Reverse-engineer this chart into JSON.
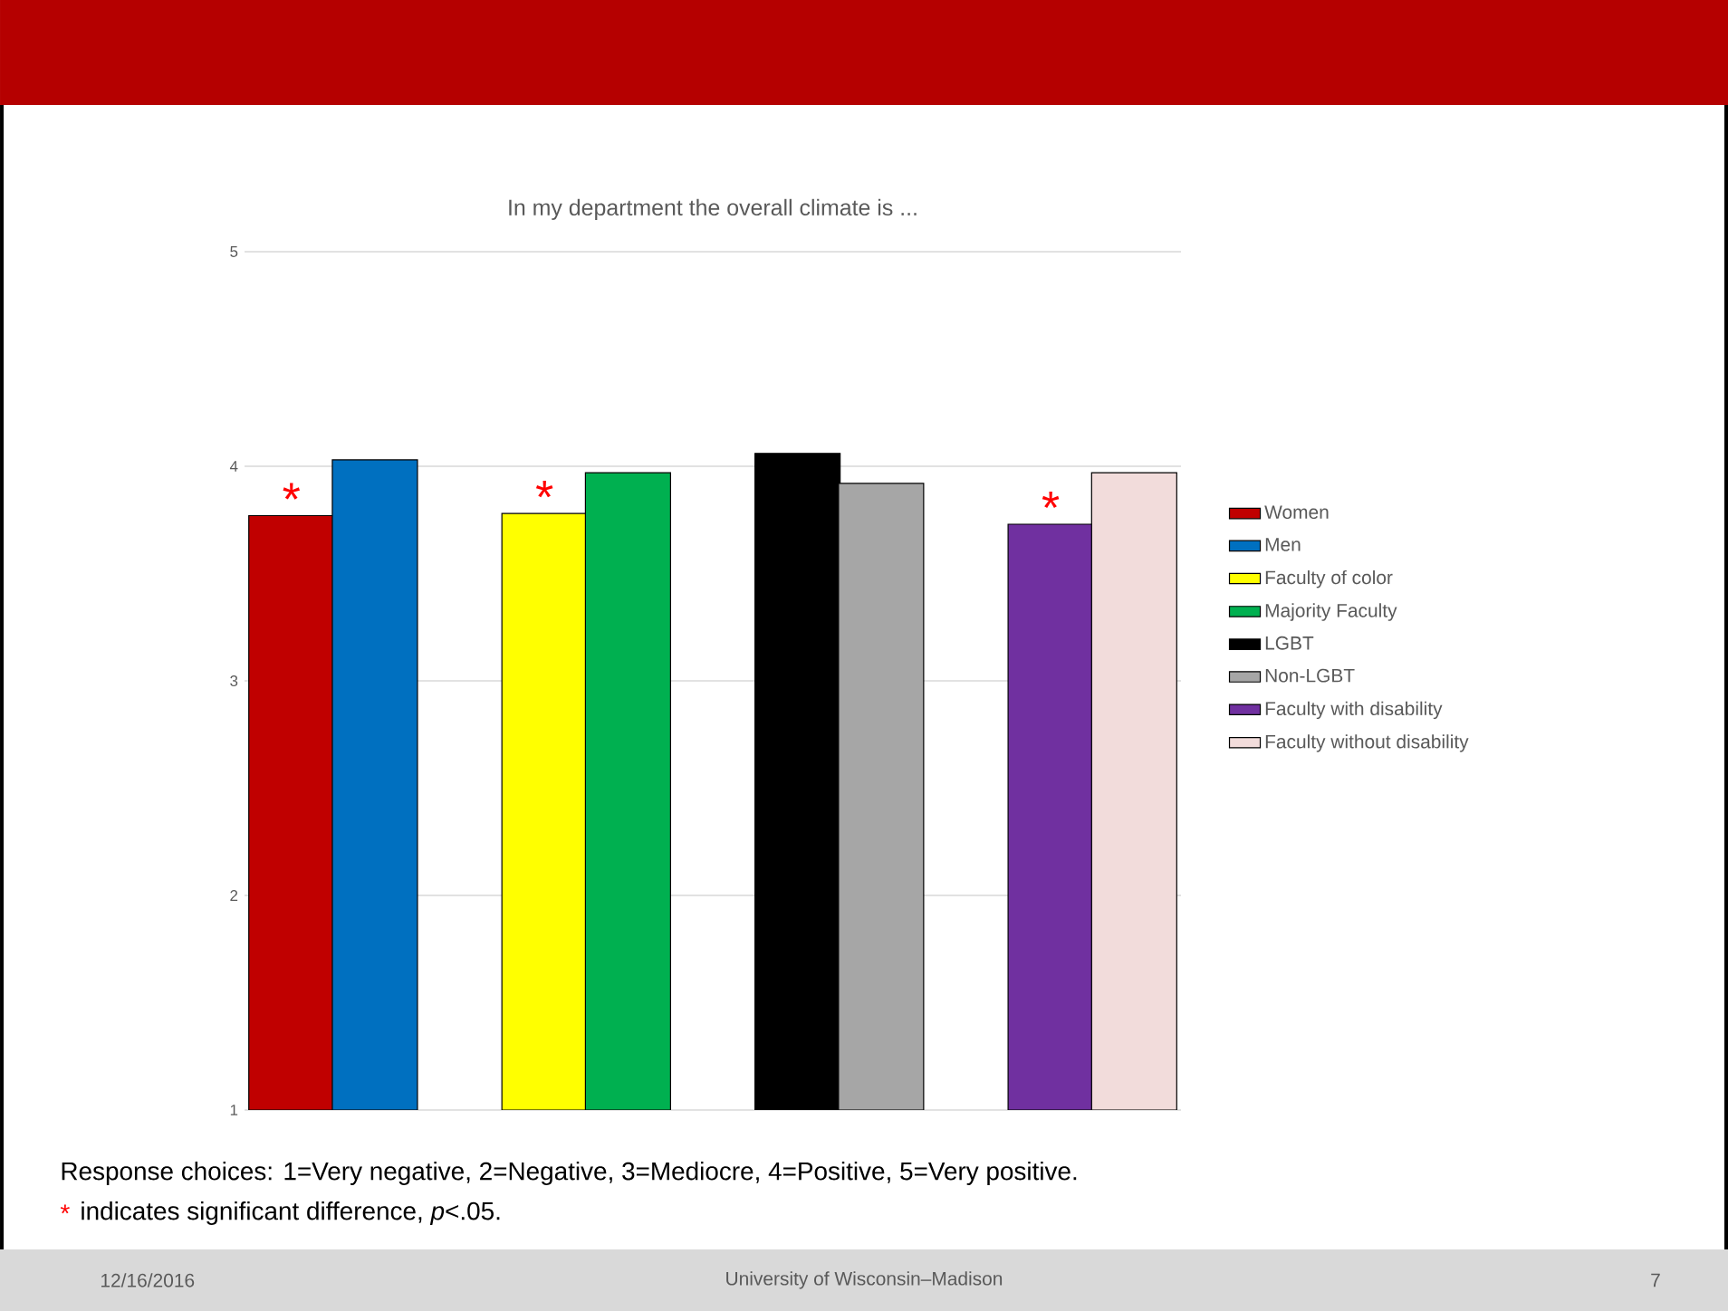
{
  "chart_data": {
    "type": "bar",
    "title": "In my department the overall climate is ...",
    "categories": [
      null,
      null,
      null,
      null
    ],
    "series": [
      {
        "name": "Women",
        "color": "#c00000",
        "values": [
          3.77,
          null,
          null,
          null
        ]
      },
      {
        "name": "Men",
        "color": "#0070c0",
        "values": [
          4.03,
          null,
          null,
          null
        ]
      },
      {
        "name": "Faculty of color",
        "color": "#ffff00",
        "values": [
          null,
          3.78,
          null,
          null
        ]
      },
      {
        "name": "Majority Faculty",
        "color": "#00b050",
        "values": [
          null,
          3.97,
          null,
          null
        ]
      },
      {
        "name": "LGBT",
        "color": "#000000",
        "values": [
          null,
          null,
          4.06,
          null
        ]
      },
      {
        "name": "Non-LGBT",
        "color": "#a6a6a6",
        "values": [
          null,
          null,
          3.92,
          null
        ]
      },
      {
        "name": "Faculty with disability",
        "color": "#7030a0",
        "values": [
          null,
          null,
          null,
          3.73
        ]
      },
      {
        "name": "Faculty without disability",
        "color": "#f2dcdb",
        "values": [
          null,
          null,
          null,
          3.97
        ]
      }
    ],
    "ylim": [
      1,
      5
    ],
    "yticks": [
      1,
      2,
      3,
      4,
      5
    ],
    "grid": "y",
    "legend": "right",
    "annotations": [
      "Response choices:  1=Very negative, 2=Negative, 3=Mediocre, 4=Positive, 5=Very positive.",
      "*",
      "indicates significant difference, *p*<.05.",
      "12/16/2016",
      "University of Wisconsin–Madison",
      "7",
      {
        "text": "*",
        "y": 3.77
      },
      {
        "text": "*",
        "y": 3.78
      },
      {
        "text": "*",
        "y": 3.73
      }
    ]
  }
}
